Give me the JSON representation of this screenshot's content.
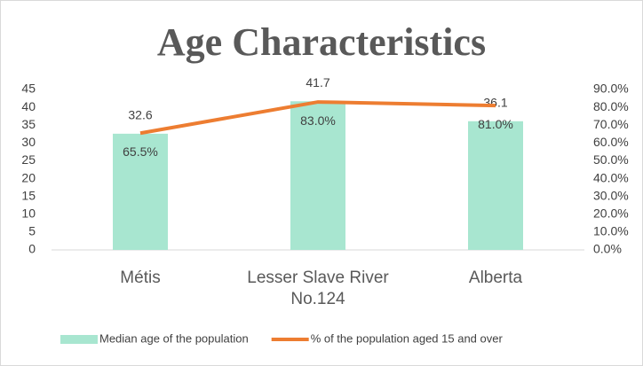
{
  "chart_data": {
    "type": "bar-line",
    "title": "Age Characteristics",
    "categories": [
      "Métis",
      "Lesser Slave River No.124",
      "Alberta"
    ],
    "series": [
      {
        "name": "Median age of the population",
        "type": "bar",
        "color": "#a8e6d0",
        "values": [
          32.6,
          41.7,
          36.1
        ]
      },
      {
        "name": "% of the population aged 15 and over",
        "type": "line",
        "axis": "y2",
        "color": "#ed7d31",
        "values": [
          65.5,
          83.0,
          81.0
        ],
        "value_labels": [
          "65.5%",
          "83.0%",
          "81.0%"
        ]
      }
    ],
    "ylim": [
      0,
      45
    ],
    "yticks": [
      0,
      5,
      10,
      15,
      20,
      25,
      30,
      35,
      40,
      45
    ],
    "y2lim": [
      0,
      90
    ],
    "y2ticks": [
      {
        "value": 0,
        "label": "0.0%"
      },
      {
        "value": 10,
        "label": "10.0%"
      },
      {
        "value": 20,
        "label": "20.0%"
      },
      {
        "value": 30,
        "label": "30.0%"
      },
      {
        "value": 40,
        "label": "40.0%"
      },
      {
        "value": 50,
        "label": "50.0%"
      },
      {
        "value": 60,
        "label": "60.0%"
      },
      {
        "value": 70,
        "label": "70.0%"
      },
      {
        "value": 80,
        "label": "80.0%"
      },
      {
        "value": 90,
        "label": "90.0%"
      }
    ],
    "legend": "bottom"
  }
}
